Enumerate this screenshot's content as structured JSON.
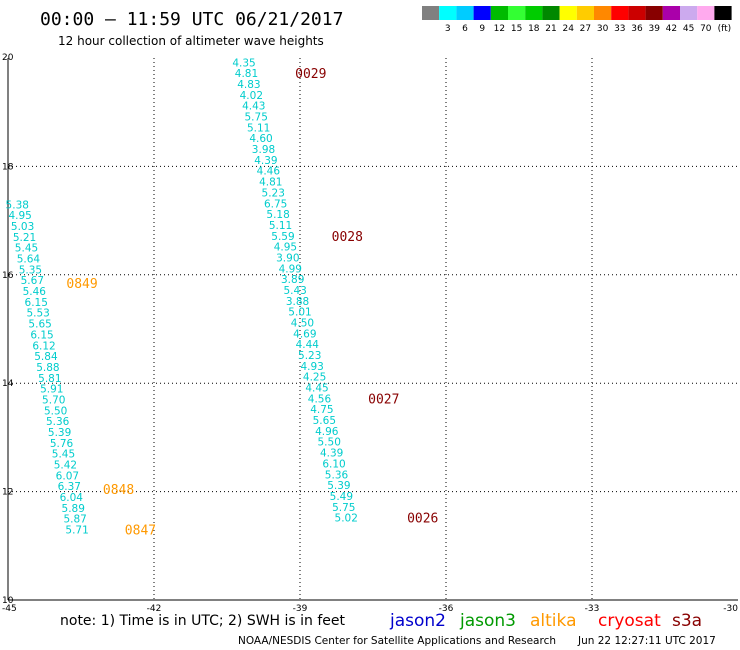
{
  "header": {
    "title": "00:00 – 11:59 UTC 06/21/2017",
    "subtitle": "12 hour collection of altimeter wave heights"
  },
  "color_scale": {
    "swatches": [
      {
        "color": "#808080",
        "label": ""
      },
      {
        "color": "#00ffff",
        "label": "3"
      },
      {
        "color": "#00ccff",
        "label": "6"
      },
      {
        "color": "#0000ff",
        "label": "9"
      },
      {
        "color": "#00bb00",
        "label": "12"
      },
      {
        "color": "#33ff33",
        "label": "15"
      },
      {
        "color": "#00cc00",
        "label": "18"
      },
      {
        "color": "#008800",
        "label": "21"
      },
      {
        "color": "#ffff00",
        "label": "24"
      },
      {
        "color": "#ffcc00",
        "label": "27"
      },
      {
        "color": "#ff8800",
        "label": "30"
      },
      {
        "color": "#ff0000",
        "label": "33"
      },
      {
        "color": "#cc0000",
        "label": "36"
      },
      {
        "color": "#880000",
        "label": "39"
      },
      {
        "color": "#aa00aa",
        "label": "42"
      },
      {
        "color": "#ccaaee",
        "label": "45"
      },
      {
        "color": "#ffaaee",
        "label": "70"
      },
      {
        "color": "#000000",
        "label": ""
      }
    ],
    "unit": "(ft)"
  },
  "footer": {
    "note": "note: 1) Time is in UTC; 2) SWH is in feet",
    "satellites": [
      {
        "name": "jason2",
        "color": "#0000cc"
      },
      {
        "name": "jason3",
        "color": "#009900"
      },
      {
        "name": "altika",
        "color": "#ff9900"
      },
      {
        "name": "cryosat",
        "color": "#ff0000"
      },
      {
        "name": "s3a",
        "color": "#880000"
      }
    ],
    "credit": "NOAA/NESDIS Center for Satellite Applications and Research",
    "timestamp": "Jun 22 12:27:11 UTC 2017"
  },
  "chart_data": {
    "type": "scatter",
    "title": "00:00 – 11:59 UTC 06/21/2017",
    "subtitle": "12 hour collection of altimeter wave heights",
    "xlim": [
      -45,
      -30
    ],
    "ylim": [
      10,
      20
    ],
    "x_ticks": [
      "-45",
      "-42",
      "-39",
      "-36",
      "-33",
      "-30"
    ],
    "y_ticks": [
      "10",
      "12",
      "14",
      "16",
      "18",
      "20"
    ],
    "grid": true,
    "tracks": [
      {
        "satellite": "altika",
        "color": "#00cccc",
        "points": [
          {
            "lon": -44.81,
            "lat": 17.3,
            "swh": "5.38"
          },
          {
            "lon": -44.75,
            "lat": 17.1,
            "swh": "4.95"
          },
          {
            "lon": -44.7,
            "lat": 16.9,
            "swh": "5.03"
          },
          {
            "lon": -44.66,
            "lat": 16.7,
            "swh": "5.21"
          },
          {
            "lon": -44.62,
            "lat": 16.5,
            "swh": "5.45"
          },
          {
            "lon": -44.58,
            "lat": 16.3,
            "swh": "5.64"
          },
          {
            "lon": -44.54,
            "lat": 16.1,
            "swh": "5.35"
          },
          {
            "lon": -44.5,
            "lat": 15.9,
            "swh": "5.67"
          },
          {
            "lon": -44.46,
            "lat": 15.7,
            "swh": "5.46"
          },
          {
            "lon": -44.42,
            "lat": 15.5,
            "swh": "6.15"
          },
          {
            "lon": -44.38,
            "lat": 15.3,
            "swh": "5.53"
          },
          {
            "lon": -44.34,
            "lat": 15.1,
            "swh": "5.65"
          },
          {
            "lon": -44.3,
            "lat": 14.9,
            "swh": "6.15"
          },
          {
            "lon": -44.26,
            "lat": 14.7,
            "swh": "6.12"
          },
          {
            "lon": -44.22,
            "lat": 14.5,
            "swh": "5.84"
          },
          {
            "lon": -44.18,
            "lat": 14.3,
            "swh": "5.88"
          },
          {
            "lon": -44.14,
            "lat": 14.1,
            "swh": "5.81"
          },
          {
            "lon": -44.1,
            "lat": 13.9,
            "swh": "5.91"
          },
          {
            "lon": -44.06,
            "lat": 13.7,
            "swh": "5.70"
          },
          {
            "lon": -44.02,
            "lat": 13.5,
            "swh": "5.50"
          },
          {
            "lon": -43.98,
            "lat": 13.3,
            "swh": "5.36"
          },
          {
            "lon": -43.94,
            "lat": 13.1,
            "swh": "5.39"
          },
          {
            "lon": -43.9,
            "lat": 12.9,
            "swh": "5.76"
          },
          {
            "lon": -43.86,
            "lat": 12.7,
            "swh": "5.45"
          },
          {
            "lon": -43.82,
            "lat": 12.5,
            "swh": "5.42"
          },
          {
            "lon": -43.78,
            "lat": 12.3,
            "swh": "6.07"
          },
          {
            "lon": -43.74,
            "lat": 12.1,
            "swh": "6.37"
          },
          {
            "lon": -43.7,
            "lat": 11.9,
            "swh": "6.04"
          },
          {
            "lon": -43.66,
            "lat": 11.7,
            "swh": "5.89"
          },
          {
            "lon": -43.62,
            "lat": 11.5,
            "swh": "5.87"
          },
          {
            "lon": -43.58,
            "lat": 11.3,
            "swh": "5.71"
          }
        ],
        "time_labels": [
          {
            "lon": -43.8,
            "lat": 15.85,
            "text": "0849"
          },
          {
            "lon": -43.05,
            "lat": 12.05,
            "text": "0848"
          },
          {
            "lon": -42.6,
            "lat": 11.3,
            "text": "0847"
          }
        ]
      },
      {
        "satellite": "s3a",
        "color": "#00cccc",
        "points": [
          {
            "lon": -40.15,
            "lat": 19.92,
            "swh": "4.35"
          },
          {
            "lon": -40.1,
            "lat": 19.72,
            "swh": "4.81"
          },
          {
            "lon": -40.05,
            "lat": 19.52,
            "swh": "4.83"
          },
          {
            "lon": -40.0,
            "lat": 19.32,
            "swh": "4.02"
          },
          {
            "lon": -39.95,
            "lat": 19.12,
            "swh": "4.43"
          },
          {
            "lon": -39.9,
            "lat": 18.92,
            "swh": "5.75"
          },
          {
            "lon": -39.85,
            "lat": 18.72,
            "swh": "5.11"
          },
          {
            "lon": -39.8,
            "lat": 18.52,
            "swh": "4.60"
          },
          {
            "lon": -39.75,
            "lat": 18.32,
            "swh": "3.98"
          },
          {
            "lon": -39.7,
            "lat": 18.12,
            "swh": "4.39"
          },
          {
            "lon": -39.65,
            "lat": 17.92,
            "swh": "4.46"
          },
          {
            "lon": -39.6,
            "lat": 17.72,
            "swh": "4.81"
          },
          {
            "lon": -39.55,
            "lat": 17.52,
            "swh": "5.23"
          },
          {
            "lon": -39.5,
            "lat": 17.32,
            "swh": "6.75"
          },
          {
            "lon": -39.45,
            "lat": 17.12,
            "swh": "5.18"
          },
          {
            "lon": -39.4,
            "lat": 16.92,
            "swh": "5.11"
          },
          {
            "lon": -39.35,
            "lat": 16.72,
            "swh": "5.59"
          },
          {
            "lon": -39.3,
            "lat": 16.52,
            "swh": "4.95"
          },
          {
            "lon": -39.25,
            "lat": 16.32,
            "swh": "3.90"
          },
          {
            "lon": -39.2,
            "lat": 16.12,
            "swh": "4.99"
          },
          {
            "lon": -39.15,
            "lat": 15.92,
            "swh": "3.89"
          },
          {
            "lon": -39.1,
            "lat": 15.72,
            "swh": "5.43"
          },
          {
            "lon": -39.05,
            "lat": 15.52,
            "swh": "3.88"
          },
          {
            "lon": -39.0,
            "lat": 15.32,
            "swh": "5.01"
          },
          {
            "lon": -38.95,
            "lat": 15.12,
            "swh": "4.50"
          },
          {
            "lon": -38.9,
            "lat": 14.92,
            "swh": "4.69"
          },
          {
            "lon": -38.85,
            "lat": 14.72,
            "swh": "4.44"
          },
          {
            "lon": -38.8,
            "lat": 14.52,
            "swh": "5.23"
          },
          {
            "lon": -38.75,
            "lat": 14.32,
            "swh": "4.93"
          },
          {
            "lon": -38.7,
            "lat": 14.12,
            "swh": "4.25"
          },
          {
            "lon": -38.65,
            "lat": 13.92,
            "swh": "4.45"
          },
          {
            "lon": -38.6,
            "lat": 13.72,
            "swh": "4.56"
          },
          {
            "lon": -38.55,
            "lat": 13.52,
            "swh": "4.75"
          },
          {
            "lon": -38.5,
            "lat": 13.32,
            "swh": "5.65"
          },
          {
            "lon": -38.45,
            "lat": 13.12,
            "swh": "4.96"
          },
          {
            "lon": -38.4,
            "lat": 12.92,
            "swh": "5.50"
          },
          {
            "lon": -38.35,
            "lat": 12.72,
            "swh": "4.39"
          },
          {
            "lon": -38.3,
            "lat": 12.52,
            "swh": "6.10"
          },
          {
            "lon": -38.25,
            "lat": 12.32,
            "swh": "5.36"
          },
          {
            "lon": -38.2,
            "lat": 12.12,
            "swh": "5.39"
          },
          {
            "lon": -38.15,
            "lat": 11.92,
            "swh": "5.49"
          },
          {
            "lon": -38.1,
            "lat": 11.72,
            "swh": "5.75"
          },
          {
            "lon": -38.05,
            "lat": 11.52,
            "swh": "5.02"
          }
        ],
        "time_labels": [
          {
            "lon": -39.1,
            "lat": 19.72,
            "text": "0029"
          },
          {
            "lon": -38.35,
            "lat": 16.72,
            "text": "0028"
          },
          {
            "lon": -37.6,
            "lat": 13.72,
            "text": "0027"
          },
          {
            "lon": -36.8,
            "lat": 11.52,
            "text": "0026"
          }
        ]
      }
    ]
  }
}
